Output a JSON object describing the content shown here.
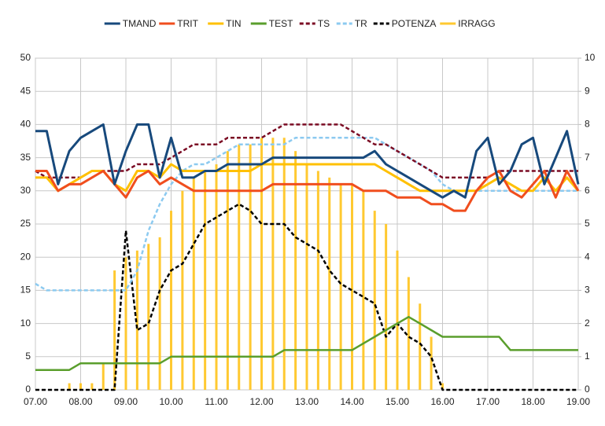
{
  "chart_data": {
    "type": "line",
    "legend": "top",
    "grid": true,
    "x": [
      7,
      7.25,
      7.5,
      7.75,
      8,
      8.25,
      8.5,
      8.75,
      9,
      9.25,
      9.5,
      9.75,
      10,
      10.25,
      10.5,
      10.75,
      11,
      11.25,
      11.5,
      11.75,
      12,
      12.25,
      12.5,
      12.75,
      13,
      13.25,
      13.5,
      13.75,
      14,
      14.25,
      14.5,
      14.75,
      15,
      15.25,
      15.5,
      15.75,
      16,
      16.25,
      16.5,
      16.75,
      17,
      17.25,
      17.5,
      17.75,
      18,
      18.25,
      18.5,
      18.75,
      19
    ],
    "xlim": [
      7,
      19
    ],
    "xticks": [
      {
        "value": 7,
        "label": "07.00"
      },
      {
        "value": 8,
        "label": "08.00"
      },
      {
        "value": 9,
        "label": "09.00"
      },
      {
        "value": 10,
        "label": "10.00"
      },
      {
        "value": 11,
        "label": "11.00"
      },
      {
        "value": 12,
        "label": "12.00"
      },
      {
        "value": 13,
        "label": "13.00"
      },
      {
        "value": 14,
        "label": "14.00"
      },
      {
        "value": 15,
        "label": "15.00"
      },
      {
        "value": 16,
        "label": "16.00"
      },
      {
        "value": 17,
        "label": "17.00"
      },
      {
        "value": 18,
        "label": "18.00"
      },
      {
        "value": 19,
        "label": "19.00"
      }
    ],
    "ylim": [
      0,
      50
    ],
    "yticks": [
      0,
      5,
      10,
      15,
      20,
      25,
      30,
      35,
      40,
      45,
      50
    ],
    "y2lim": [
      0,
      10
    ],
    "y2ticks": [
      0,
      1,
      2,
      3,
      4,
      5,
      6,
      7,
      8,
      9,
      10
    ],
    "series": [
      {
        "name": "TMAND",
        "color": "#17497c",
        "type": "line",
        "dash": false,
        "width": 3,
        "values": [
          39,
          39,
          31,
          36,
          38,
          39,
          40,
          31,
          36,
          40,
          40,
          32,
          38,
          32,
          32,
          33,
          33,
          34,
          34,
          34,
          34,
          35,
          35,
          35,
          35,
          35,
          35,
          35,
          35,
          35,
          36,
          34,
          33,
          32,
          31,
          30,
          29,
          30,
          29,
          36,
          38,
          31,
          33,
          37,
          38,
          31,
          35,
          39,
          31
        ]
      },
      {
        "name": "TRIT",
        "color": "#f04e1e",
        "type": "line",
        "dash": false,
        "width": 3,
        "values": [
          33,
          33,
          30,
          31,
          31,
          32,
          33,
          31,
          29,
          32,
          33,
          31,
          32,
          31,
          30,
          30,
          30,
          30,
          30,
          30,
          30,
          31,
          31,
          31,
          31,
          31,
          31,
          31,
          31,
          30,
          30,
          30,
          29,
          29,
          29,
          28,
          28,
          27,
          27,
          30,
          32,
          33,
          30,
          29,
          31,
          33,
          29,
          33,
          30
        ]
      },
      {
        "name": "TIN",
        "color": "#ffc000",
        "type": "line",
        "dash": false,
        "width": 3,
        "values": [
          32,
          32,
          30,
          31,
          32,
          33,
          33,
          31,
          30,
          33,
          33,
          32,
          34,
          33,
          33,
          33,
          33,
          33,
          33,
          33,
          34,
          34,
          34,
          34,
          34,
          34,
          34,
          34,
          34,
          34,
          34,
          33,
          32,
          31,
          30,
          30,
          30,
          30,
          30,
          30,
          31,
          32,
          31,
          30,
          30,
          32,
          30,
          32,
          30
        ]
      },
      {
        "name": "TEST",
        "color": "#5a9e2c",
        "type": "line",
        "dash": false,
        "width": 2.5,
        "values": [
          3,
          3,
          3,
          3,
          4,
          4,
          4,
          4,
          4,
          4,
          4,
          4,
          5,
          5,
          5,
          5,
          5,
          5,
          5,
          5,
          5,
          5,
          6,
          6,
          6,
          6,
          6,
          6,
          6,
          7,
          8,
          9,
          10,
          11,
          10,
          9,
          8,
          8,
          8,
          8,
          8,
          8,
          6,
          6,
          6,
          6,
          6,
          6,
          6
        ]
      },
      {
        "name": "TS",
        "color": "#7b0c24",
        "type": "line",
        "dash": true,
        "width": 2.5,
        "values": [
          33,
          32,
          32,
          32,
          32,
          33,
          33,
          33,
          33,
          34,
          34,
          34,
          35,
          36,
          37,
          37,
          37,
          38,
          38,
          38,
          38,
          39,
          40,
          40,
          40,
          40,
          40,
          40,
          39,
          38,
          37,
          37,
          36,
          35,
          34,
          33,
          32,
          32,
          32,
          32,
          32,
          33,
          33,
          33,
          33,
          33,
          33,
          33,
          33
        ]
      },
      {
        "name": "TR",
        "color": "#8ccaf0",
        "type": "line",
        "dash": true,
        "width": 2.5,
        "values": [
          16,
          15,
          15,
          15,
          15,
          15,
          15,
          15,
          15,
          18,
          24,
          28,
          31,
          33,
          34,
          34,
          35,
          36,
          37,
          37,
          37,
          37,
          37,
          38,
          38,
          38,
          38,
          38,
          38,
          38,
          38,
          37,
          36,
          35,
          34,
          33,
          31,
          30,
          30,
          30,
          30,
          30,
          30,
          30,
          30,
          30,
          30,
          30,
          30
        ]
      },
      {
        "name": "POTENZA",
        "color": "#000000",
        "type": "line",
        "dash": true,
        "width": 2.5,
        "axis": "y2",
        "values": [
          0,
          0,
          0,
          0,
          0,
          0,
          0,
          0,
          4.8,
          1.8,
          2,
          3,
          3.6,
          3.8,
          4.4,
          5,
          5.2,
          5.4,
          5.6,
          5.4,
          5,
          5,
          5,
          4.6,
          4.4,
          4.2,
          3.6,
          3.2,
          3,
          2.8,
          2.6,
          1.6,
          2,
          1.6,
          1.4,
          1,
          0,
          0,
          0,
          0,
          0,
          0,
          0,
          0,
          0,
          0,
          0,
          0,
          0
        ]
      },
      {
        "name": "IRRAGG",
        "color": "#ffc931",
        "type": "bar",
        "dash": false,
        "width": 3,
        "values": [
          0,
          0,
          0,
          1,
          1,
          1,
          4,
          18,
          20,
          21,
          22,
          23,
          27,
          30,
          32,
          33,
          34,
          36,
          37,
          37,
          38,
          38,
          38,
          36,
          34,
          33,
          32,
          31,
          31,
          30,
          27,
          25,
          21,
          17,
          13,
          8,
          1,
          0,
          0,
          0,
          0,
          0,
          0,
          0,
          0,
          0,
          0,
          0,
          0
        ]
      }
    ]
  }
}
